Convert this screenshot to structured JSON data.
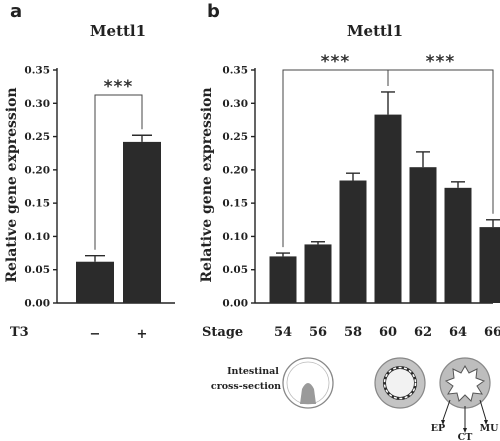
{
  "panels": {
    "a": {
      "letter": "a",
      "title": "Mettl1",
      "ylabel": "Relative gene expression",
      "row_label": "T3",
      "yticks": [
        "0.00",
        "0.05",
        "0.10",
        "0.15",
        "0.20",
        "0.25",
        "0.30",
        "0.35"
      ],
      "significance": "***"
    },
    "b": {
      "letter": "b",
      "title": "Mettl1",
      "ylabel": "Relative gene expression",
      "row_label": "Stage",
      "yticks": [
        "0.00",
        "0.05",
        "0.10",
        "0.15",
        "0.20",
        "0.25",
        "0.30",
        "0.35"
      ],
      "significance_left": "***",
      "significance_right": "***"
    }
  },
  "illustration": {
    "caption_line1": "Intestinal",
    "caption_line2": "cross-section",
    "labels": {
      "ep": "EP",
      "ct": "CT",
      "mu": "MU"
    }
  },
  "chart_data": [
    {
      "type": "bar",
      "title": "Mettl1",
      "ylabel": "Relative gene expression",
      "xlabel": "T3",
      "categories": [
        "−",
        "+"
      ],
      "values": [
        0.062,
        0.242
      ],
      "error": [
        0.009,
        0.01
      ],
      "ylim": [
        0,
        0.35
      ],
      "significance": [
        {
          "between": [
            "−",
            "+"
          ],
          "label": "***"
        }
      ],
      "bar_color": "#2b2b2b"
    },
    {
      "type": "bar",
      "title": "Mettl1",
      "ylabel": "Relative gene expression",
      "xlabel": "Stage",
      "categories": [
        "54",
        "56",
        "58",
        "60",
        "62",
        "64",
        "66"
      ],
      "values": [
        0.07,
        0.088,
        0.184,
        0.283,
        0.204,
        0.173,
        0.114
      ],
      "error": [
        0.005,
        0.004,
        0.011,
        0.034,
        0.023,
        0.009,
        0.011
      ],
      "ylim": [
        0,
        0.35
      ],
      "significance": [
        {
          "between": [
            "54",
            "60"
          ],
          "label": "***"
        },
        {
          "between": [
            "60",
            "66"
          ],
          "label": "***"
        }
      ],
      "bar_color": "#2b2b2b"
    }
  ]
}
